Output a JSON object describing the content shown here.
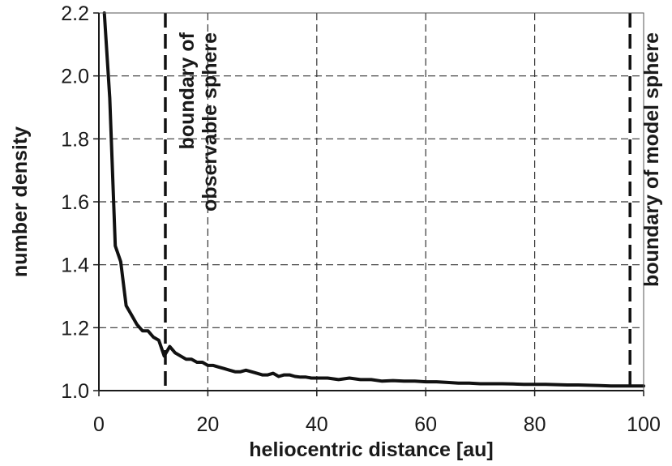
{
  "chart_data": {
    "type": "line",
    "title": "",
    "xlabel": "heliocentric distance [au]",
    "ylabel": "number density",
    "xlim": [
      0,
      100
    ],
    "ylim": [
      1.0,
      2.2
    ],
    "xticks": [
      "0",
      "20",
      "40",
      "60",
      "80",
      "100"
    ],
    "yticks": [
      "1.0",
      "1.2",
      "1.4",
      "1.6",
      "1.8",
      "2.0",
      "2.2"
    ],
    "grid": true,
    "series": [
      {
        "x": [
          1,
          2,
          3,
          4,
          5,
          6,
          7,
          8,
          9,
          10,
          11,
          12,
          13,
          14,
          15,
          16,
          17,
          18,
          19,
          20,
          21,
          22,
          23,
          24,
          25,
          26,
          27,
          28,
          29,
          30,
          31,
          32,
          33,
          34,
          35,
          36,
          37,
          38,
          39,
          40,
          42,
          44,
          46,
          48,
          50,
          52,
          54,
          56,
          58,
          60,
          62,
          64,
          66,
          68,
          70,
          72,
          74,
          76,
          78,
          80,
          82,
          84,
          86,
          88,
          90,
          92,
          94,
          96,
          98,
          100
        ],
        "y": [
          2.2,
          1.93,
          1.46,
          1.41,
          1.27,
          1.24,
          1.21,
          1.19,
          1.19,
          1.17,
          1.16,
          1.11,
          1.14,
          1.12,
          1.11,
          1.1,
          1.1,
          1.09,
          1.09,
          1.08,
          1.08,
          1.075,
          1.07,
          1.065,
          1.06,
          1.06,
          1.065,
          1.06,
          1.055,
          1.05,
          1.05,
          1.055,
          1.045,
          1.05,
          1.05,
          1.045,
          1.043,
          1.043,
          1.04,
          1.04,
          1.04,
          1.035,
          1.04,
          1.035,
          1.035,
          1.03,
          1.032,
          1.03,
          1.03,
          1.028,
          1.028,
          1.026,
          1.024,
          1.024,
          1.022,
          1.022,
          1.022,
          1.021,
          1.02,
          1.02,
          1.02,
          1.019,
          1.018,
          1.018,
          1.017,
          1.016,
          1.015,
          1.015,
          1.015,
          1.015
        ]
      }
    ],
    "annotations": [
      {
        "x": 12.2,
        "lines": [
          "boundary of",
          "observable sphere"
        ]
      },
      {
        "x": 97.5,
        "lines": [
          "boundary of model sphere"
        ]
      }
    ]
  }
}
